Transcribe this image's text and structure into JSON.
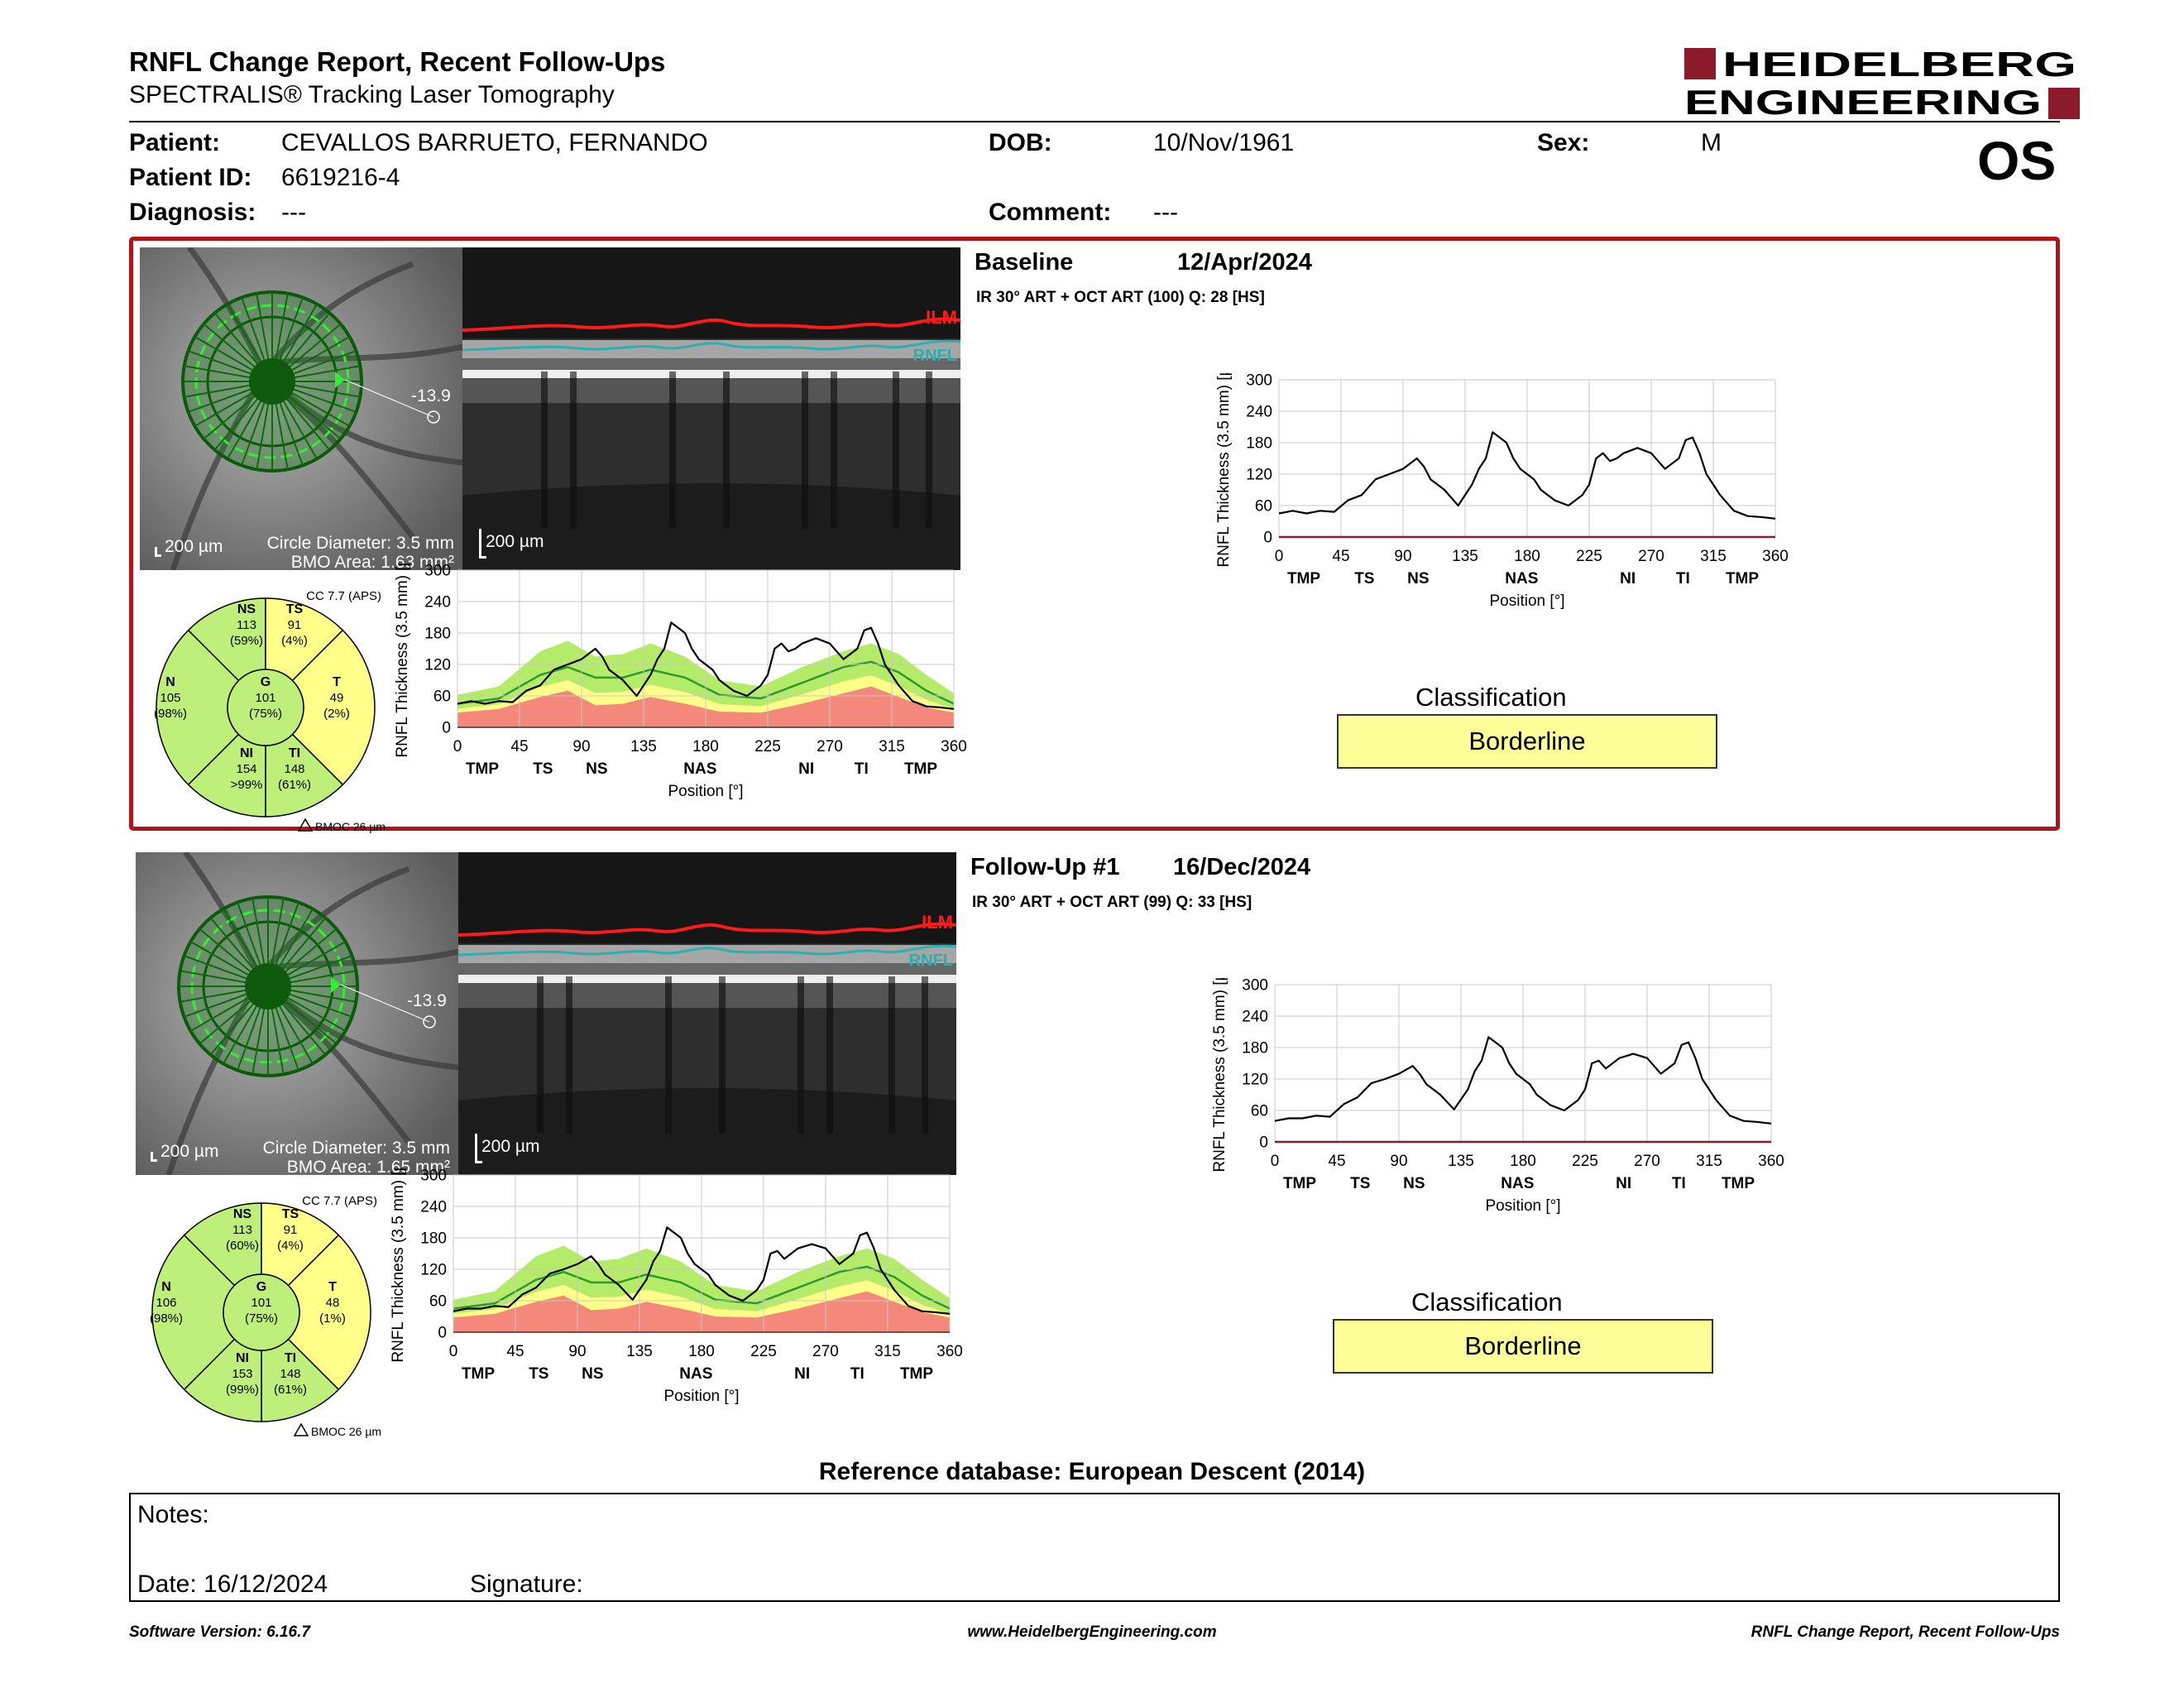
{
  "header": {
    "title": "RNFL Change Report, Recent Follow-Ups",
    "subtitle": "SPECTRALIS® Tracking Laser Tomography",
    "logo_line1": "HEIDELBERG",
    "logo_line2": "ENGINEERING",
    "brand_color": "#8b1a2b"
  },
  "patient": {
    "patient_label": "Patient:",
    "patient_value": "CEVALLOS BARRUETO, FERNANDO",
    "id_label": "Patient ID:",
    "id_value": "6619216-4",
    "diagnosis_label": "Diagnosis:",
    "diagnosis_value": "---",
    "dob_label": "DOB:",
    "dob_value": "10/Nov/1961",
    "comment_label": "Comment:",
    "comment_value": "---",
    "sex_label": "Sex:",
    "sex_value": "M",
    "eye": "OS"
  },
  "exams": [
    {
      "title": "Baseline",
      "date": "12/Apr/2024",
      "info": "IR 30° ART + OCT ART (100) Q: 28 [HS]",
      "offset": "-13.9",
      "scale_left": "200 µm",
      "circle": "Circle Diameter: 3.5 mm",
      "bmo_area": "BMO Area: 1.63 mm²",
      "scale_right": "200 µm",
      "ilm": "ILM",
      "rnfl": "RNFL",
      "cc": "CC 7.7 (APS)",
      "bmoc": "BMOC 26 µm",
      "sectors": {
        "NS": {
          "label": "NS",
          "value": "113",
          "pct": "(59%)"
        },
        "TS": {
          "label": "TS",
          "value": "91",
          "pct": "(4%)"
        },
        "N": {
          "label": "N",
          "value": "105",
          "pct": "(98%)"
        },
        "G": {
          "label": "G",
          "value": "101",
          "pct": "(75%)"
        },
        "T": {
          "label": "T",
          "value": "49",
          "pct": "(2%)"
        },
        "NI": {
          "label": "NI",
          "value": "154",
          "pct": ">99%"
        },
        "TI": {
          "label": "TI",
          "value": "148",
          "pct": "(61%)"
        }
      },
      "classification_label": "Classification",
      "classification": "Borderline"
    },
    {
      "title": "Follow-Up #1",
      "date": "16/Dec/2024",
      "info": "IR 30° ART + OCT ART (99) Q: 33 [HS]",
      "offset": "-13.9",
      "scale_left": "200 µm",
      "circle": "Circle Diameter: 3.5 mm",
      "bmo_area": "BMO Area: 1.65 mm²",
      "scale_right": "200 µm",
      "ilm": "ILM",
      "rnfl": "RNFL",
      "cc": "CC 7.7 (APS)",
      "bmoc": "BMOC 26 µm",
      "sectors": {
        "NS": {
          "label": "NS",
          "value": "113",
          "pct": "(60%)"
        },
        "TS": {
          "label": "TS",
          "value": "91",
          "pct": "(4%)"
        },
        "N": {
          "label": "N",
          "value": "106",
          "pct": "(98%)"
        },
        "G": {
          "label": "G",
          "value": "101",
          "pct": "(75%)"
        },
        "T": {
          "label": "T",
          "value": "48",
          "pct": "(1%)"
        },
        "NI": {
          "label": "NI",
          "value": "153",
          "pct": "(99%)"
        },
        "TI": {
          "label": "TI",
          "value": "148",
          "pct": "(61%)"
        }
      },
      "classification_label": "Classification",
      "classification": "Borderline"
    }
  ],
  "chart_data": [
    {
      "type": "line",
      "title": "",
      "xlabel": "Position [°]",
      "ylabel": "RNFL Thickness (3.5 mm) [µm]",
      "xlim": [
        0,
        360
      ],
      "ylim": [
        0,
        300
      ],
      "xticks": [
        0,
        45,
        90,
        135,
        180,
        225,
        270,
        315,
        360
      ],
      "yticks": [
        0,
        60,
        120,
        180,
        240,
        300
      ],
      "sector_labels": [
        {
          "x": 18,
          "label": "TMP"
        },
        {
          "x": 62,
          "label": "TS"
        },
        {
          "x": 101,
          "label": "NS"
        },
        {
          "x": 176,
          "label": "NAS"
        },
        {
          "x": 253,
          "label": "NI"
        },
        {
          "x": 293,
          "label": "TI"
        },
        {
          "x": 336,
          "label": "TMP"
        }
      ],
      "series": [
        {
          "x": [
            0,
            10,
            20,
            30,
            40,
            50,
            60,
            70,
            80,
            90,
            100,
            105,
            110,
            115,
            120,
            130,
            140,
            145,
            150,
            155,
            160,
            165,
            170,
            175,
            180,
            185,
            190,
            200,
            210,
            220,
            225,
            230,
            235,
            240,
            245,
            250,
            260,
            270,
            280,
            290,
            295,
            300,
            305,
            310,
            315,
            320,
            330,
            340,
            350,
            360
          ],
          "values": [
            45,
            50,
            45,
            50,
            48,
            70,
            80,
            110,
            120,
            130,
            150,
            135,
            110,
            100,
            90,
            60,
            100,
            130,
            150,
            200,
            190,
            180,
            150,
            130,
            120,
            110,
            90,
            70,
            60,
            80,
            100,
            150,
            160,
            145,
            150,
            160,
            170,
            160,
            130,
            150,
            185,
            190,
            160,
            120,
            100,
            80,
            50,
            40,
            38,
            35
          ]
        }
      ],
      "normative_bands": {
        "x": [
          0,
          30,
          60,
          80,
          100,
          120,
          140,
          165,
          190,
          220,
          250,
          280,
          300,
          320,
          340,
          360
        ],
        "green_upper": [
          62,
          78,
          145,
          165,
          135,
          140,
          160,
          135,
          90,
          78,
          115,
          145,
          160,
          140,
          100,
          65
        ],
        "mean": [
          45,
          55,
          100,
          115,
          95,
          95,
          110,
          95,
          62,
          55,
          85,
          115,
          125,
          105,
          70,
          45
        ],
        "red_upper": [
          28,
          35,
          58,
          70,
          42,
          45,
          58,
          45,
          30,
          28,
          45,
          65,
          78,
          58,
          38,
          28
        ]
      }
    },
    {
      "type": "line",
      "title": "",
      "xlabel": "Position [°]",
      "ylabel": "RNFL Thickness (3.5 mm) [µm]",
      "xlim": [
        0,
        360
      ],
      "ylim": [
        0,
        300
      ],
      "xticks": [
        0,
        45,
        90,
        135,
        180,
        225,
        270,
        315,
        360
      ],
      "yticks": [
        0,
        60,
        120,
        180,
        240,
        300
      ],
      "sector_labels": [
        {
          "x": 18,
          "label": "TMP"
        },
        {
          "x": 62,
          "label": "TS"
        },
        {
          "x": 101,
          "label": "NS"
        },
        {
          "x": 176,
          "label": "NAS"
        },
        {
          "x": 253,
          "label": "NI"
        },
        {
          "x": 293,
          "label": "TI"
        },
        {
          "x": 336,
          "label": "TMP"
        }
      ],
      "series": [
        {
          "x": [
            0,
            10,
            20,
            30,
            40,
            50,
            60,
            70,
            80,
            90,
            100,
            105,
            110,
            115,
            120,
            130,
            140,
            145,
            150,
            155,
            160,
            165,
            170,
            175,
            180,
            185,
            190,
            200,
            210,
            220,
            225,
            230,
            235,
            240,
            245,
            250,
            260,
            270,
            280,
            290,
            295,
            300,
            305,
            310,
            315,
            320,
            330,
            340,
            350,
            360
          ],
          "values": [
            40,
            45,
            45,
            50,
            48,
            72,
            85,
            112,
            120,
            130,
            145,
            130,
            110,
            100,
            90,
            62,
            100,
            135,
            155,
            200,
            190,
            180,
            150,
            130,
            120,
            110,
            90,
            70,
            60,
            80,
            100,
            150,
            155,
            140,
            150,
            160,
            168,
            160,
            130,
            150,
            185,
            190,
            160,
            120,
            100,
            80,
            50,
            40,
            38,
            35
          ]
        }
      ],
      "normative_bands": {
        "x": [
          0,
          30,
          60,
          80,
          100,
          120,
          140,
          165,
          190,
          220,
          250,
          280,
          300,
          320,
          340,
          360
        ],
        "green_upper": [
          62,
          78,
          145,
          165,
          135,
          140,
          160,
          135,
          90,
          78,
          115,
          145,
          160,
          140,
          100,
          65
        ],
        "mean": [
          45,
          55,
          100,
          115,
          95,
          95,
          110,
          95,
          62,
          55,
          85,
          115,
          125,
          105,
          70,
          45
        ],
        "red_upper": [
          28,
          35,
          58,
          70,
          42,
          45,
          58,
          45,
          30,
          28,
          45,
          65,
          78,
          58,
          38,
          28
        ]
      }
    }
  ],
  "footer": {
    "reference_db": "Reference database: European Descent (2014)",
    "notes_label": "Notes:",
    "date_label": "Date: 16/12/2024",
    "signature_label": "Signature:",
    "software": "Software Version: 6.16.7",
    "website": "www.HeidelbergEngineering.com",
    "report_name": "RNFL Change Report, Recent Follow-Ups"
  }
}
